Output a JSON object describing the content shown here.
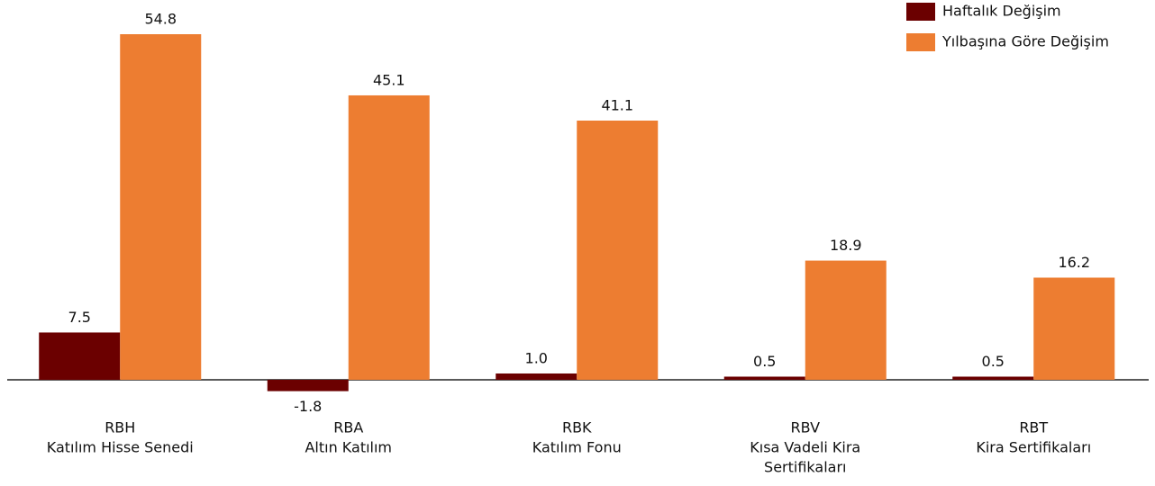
{
  "chart_data": {
    "type": "bar",
    "categories": [
      [
        "RBH",
        "Katılım Hisse Senedi"
      ],
      [
        "RBA",
        "Altın Katılım"
      ],
      [
        "RBK",
        "Katılım Fonu"
      ],
      [
        "RBV",
        "Kısa Vadeli Kira",
        "Sertifikaları"
      ],
      [
        "RBT",
        "Kira Sertifikaları"
      ]
    ],
    "series": [
      {
        "name": "Haftalık Değişim",
        "color": "#6b0000",
        "values": [
          7.5,
          -1.8,
          1.0,
          0.5,
          0.5
        ],
        "value_labels": [
          "7.5",
          "-1.8",
          "1.0",
          "0.5",
          "0.5"
        ]
      },
      {
        "name": "Yılbaşına Göre Değişim",
        "color": "#ed7d31",
        "values": [
          54.8,
          45.1,
          41.1,
          18.9,
          16.2
        ],
        "value_labels": [
          "54.8",
          "45.1",
          "41.1",
          "18.9",
          "16.2"
        ]
      }
    ],
    "legend": "top-right"
  }
}
